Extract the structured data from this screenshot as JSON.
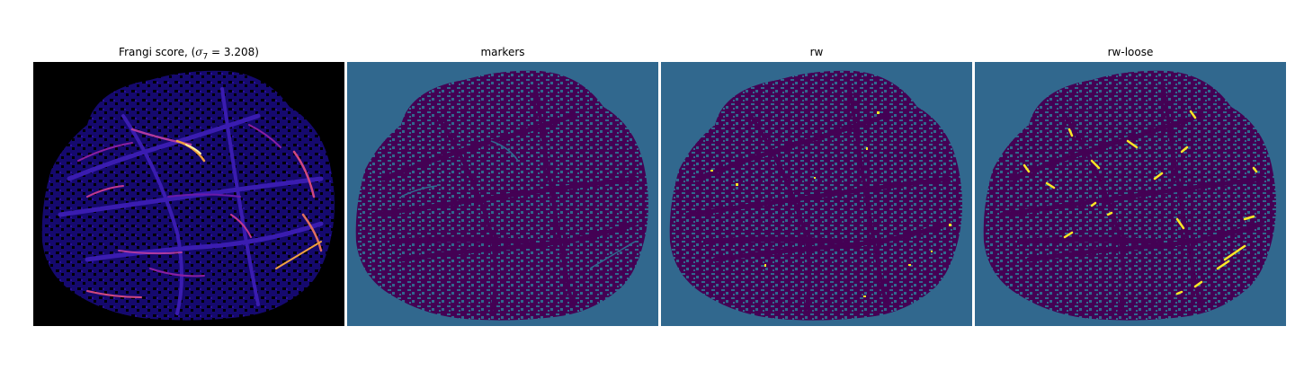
{
  "panels": [
    {
      "title_prefix": "Frangi score, (",
      "title_sigma": "σ",
      "title_sub": "7",
      "title_suffix": " = 3.208)",
      "background": "#000000",
      "colormap": "plasma"
    },
    {
      "title": "markers",
      "background": "#31688e",
      "colormap": "viridis"
    },
    {
      "title": "rw",
      "background": "#31688e",
      "colormap": "viridis"
    },
    {
      "title": "rw-loose",
      "background": "#31688e",
      "colormap": "viridis"
    }
  ],
  "colors": {
    "tissue_dark": "#440154",
    "tissue_mid": "#31688e",
    "tissue_highlight": "#fde725",
    "frangi_low": "#1b0c8a",
    "frangi_mid": "#8a1fa0",
    "frangi_high": "#f0a040",
    "frangi_peak": "#fcf5a0"
  }
}
